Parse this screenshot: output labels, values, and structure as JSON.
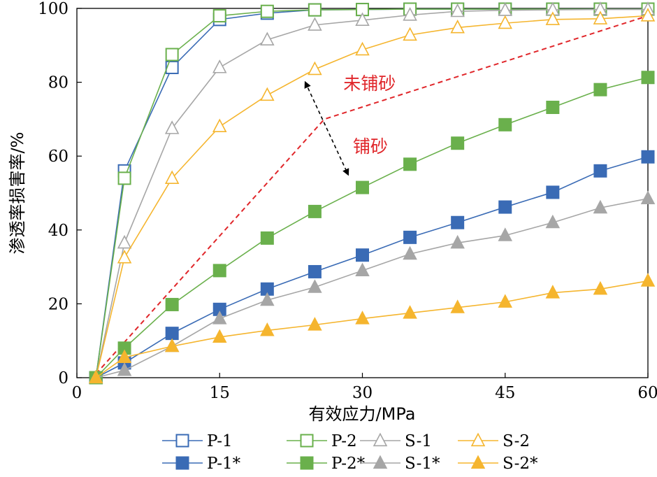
{
  "chart_data": {
    "type": "line",
    "xlabel": "有效应力/MPa",
    "ylabel": "渗透率损害率/%",
    "xlim": [
      0,
      60
    ],
    "ylim": [
      0,
      100
    ],
    "xticks": [
      0,
      15,
      30,
      45,
      60
    ],
    "yticks": [
      0,
      20,
      40,
      60,
      80,
      100
    ],
    "grid": false,
    "legend_position": "bottom",
    "x": [
      2,
      5,
      10,
      15,
      20,
      25,
      30,
      35,
      40,
      45,
      50,
      55,
      60
    ],
    "series": [
      {
        "name": "P-1",
        "color": "#3a6bb5",
        "marker": "square",
        "filled": false,
        "values": [
          0,
          56,
          84,
          97,
          98.7,
          99.6,
          99.7,
          99.8,
          99.8,
          99.8,
          99.8,
          99.8,
          99.8
        ]
      },
      {
        "name": "P-2",
        "color": "#6ab04c",
        "marker": "square",
        "filled": false,
        "values": [
          0,
          54,
          87.5,
          98,
          99.2,
          99.6,
          99.7,
          99.8,
          99.8,
          99.8,
          99.8,
          99.8,
          99.8
        ]
      },
      {
        "name": "S-1",
        "color": "#a6a6a6",
        "marker": "triangle",
        "filled": false,
        "values": [
          0,
          36.5,
          67.5,
          84,
          91.5,
          95.5,
          96.8,
          98.2,
          99.2,
          99.5,
          99.6,
          99.7,
          99.7
        ]
      },
      {
        "name": "S-2",
        "color": "#f5b52e",
        "marker": "triangle",
        "filled": false,
        "values": [
          0,
          32.5,
          54,
          68,
          76.5,
          83.5,
          88.8,
          92.8,
          94.8,
          96,
          97,
          97.2,
          98
        ]
      },
      {
        "name": "P-1*",
        "color": "#3a6bb5",
        "marker": "square",
        "filled": true,
        "values": [
          0,
          4,
          12,
          18.5,
          24,
          28.7,
          33.2,
          38,
          42,
          46.2,
          50.2,
          56,
          59.8
        ]
      },
      {
        "name": "P-2*",
        "color": "#6ab04c",
        "marker": "square",
        "filled": true,
        "values": [
          0,
          8,
          19.8,
          29,
          37.8,
          45,
          51.5,
          57.8,
          63.5,
          68.5,
          73.2,
          78,
          81.3
        ]
      },
      {
        "name": "S-1*",
        "color": "#a6a6a6",
        "marker": "triangle",
        "filled": true,
        "values": [
          0,
          2,
          8.5,
          16,
          21,
          24.5,
          29,
          33.5,
          36.5,
          38.5,
          42,
          46,
          48.5
        ]
      },
      {
        "name": "S-2*",
        "color": "#f5b52e",
        "marker": "triangle",
        "filled": true,
        "values": [
          0,
          5.5,
          8.5,
          11,
          12.8,
          14.3,
          16,
          17.5,
          19,
          20.5,
          23,
          24,
          26.2
        ]
      }
    ],
    "divider_line": {
      "color": "#e0262a",
      "points": [
        [
          2,
          1
        ],
        [
          26,
          70
        ],
        [
          60,
          98
        ]
      ]
    },
    "annotations": [
      {
        "text": "未铺砂",
        "x": 28,
        "y": 78
      },
      {
        "text": "铺砂",
        "x": 29,
        "y": 61
      }
    ],
    "arrow": {
      "from": [
        24,
        80
      ],
      "to": [
        28.5,
        55
      ]
    }
  }
}
